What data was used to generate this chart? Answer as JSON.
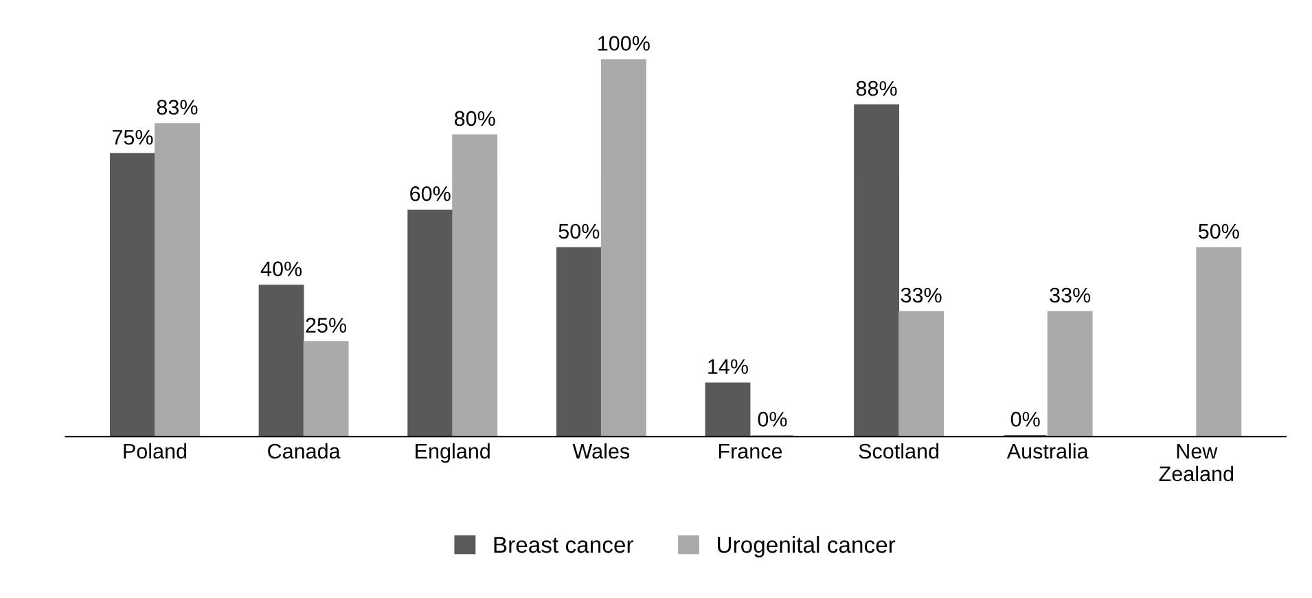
{
  "chart_data": {
    "type": "bar",
    "categories": [
      "Poland",
      "Canada",
      "England",
      "Wales",
      "France",
      "Scotland",
      "Australia",
      "New\nZealand"
    ],
    "series": [
      {
        "name": "Breast cancer",
        "color": "#595959",
        "values": [
          75,
          40,
          60,
          50,
          14,
          88,
          0,
          null
        ],
        "value_labels": [
          "75%",
          "40%",
          "60%",
          "50%",
          "14%",
          "88%",
          "0%",
          null
        ]
      },
      {
        "name": "Urogenital cancer",
        "color": "#aaaaaa",
        "values": [
          83,
          25,
          80,
          100,
          0,
          33,
          33,
          50
        ],
        "value_labels": [
          "83%",
          "25%",
          "80%",
          "100%",
          "0%",
          "33%",
          "33%",
          "50%"
        ]
      }
    ],
    "legend": "bottom",
    "grid": false
  }
}
